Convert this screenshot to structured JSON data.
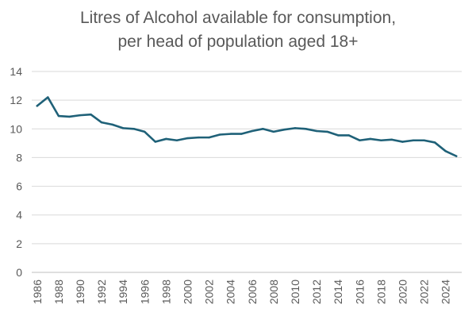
{
  "chart_data": {
    "type": "line",
    "title_lines": [
      "Litres of Alcohol available for consumption,",
      "per head of population aged 18+"
    ],
    "xlabel": "",
    "ylabel": "",
    "x": [
      1986,
      1987,
      1988,
      1989,
      1990,
      1991,
      1992,
      1993,
      1994,
      1995,
      1996,
      1997,
      1998,
      1999,
      2000,
      2001,
      2002,
      2003,
      2004,
      2005,
      2006,
      2007,
      2008,
      2009,
      2010,
      2011,
      2012,
      2013,
      2014,
      2015,
      2016,
      2017,
      2018,
      2019,
      2020,
      2021,
      2022,
      2023,
      2024,
      2025
    ],
    "x_tick_labels": [
      "1986",
      "1988",
      "1990",
      "1992",
      "1994",
      "1996",
      "1998",
      "2000",
      "2002",
      "2004",
      "2006",
      "2008",
      "2010",
      "2012",
      "2014",
      "2016",
      "2018",
      "2020",
      "2022",
      "2024"
    ],
    "series": [
      {
        "name": "",
        "values": [
          11.6,
          12.2,
          10.9,
          10.85,
          10.95,
          11.0,
          10.45,
          10.3,
          10.05,
          10.0,
          9.8,
          9.1,
          9.3,
          9.2,
          9.35,
          9.4,
          9.4,
          9.6,
          9.65,
          9.65,
          9.85,
          10.0,
          9.8,
          9.95,
          10.05,
          10.0,
          9.85,
          9.8,
          9.55,
          9.55,
          9.2,
          9.3,
          9.2,
          9.25,
          9.1,
          9.2,
          9.2,
          9.05,
          8.45,
          8.1
        ],
        "color": "#1f6178"
      }
    ],
    "ylim": [
      0,
      14
    ],
    "y_ticks": [
      0,
      2,
      4,
      6,
      8,
      10,
      12,
      14
    ],
    "grid": true,
    "legend": "none"
  }
}
